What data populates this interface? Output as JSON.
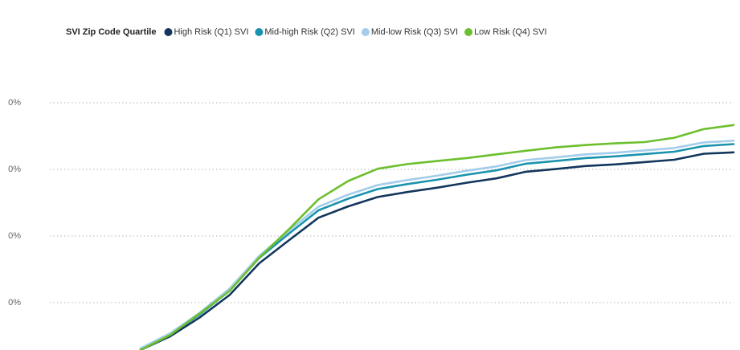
{
  "chart_data": {
    "type": "line",
    "legend_title": "SVI Zip Code Quartile",
    "categories": [
      null,
      null,
      null,
      null,
      null,
      null,
      null,
      null,
      null,
      null,
      null,
      null,
      null,
      null,
      null,
      null,
      null,
      null,
      null,
      null,
      null
    ],
    "ylim": [
      0,
      90
    ],
    "yticks": [
      {
        "value": 20,
        "label": "0%"
      },
      {
        "value": 40,
        "label": "0%"
      },
      {
        "value": 60,
        "label": "0%"
      },
      {
        "value": 80,
        "label": "0%"
      }
    ],
    "grid": true,
    "legend": "top",
    "series": [
      {
        "name": "High Risk (Q1) SVI",
        "color": "#13365c",
        "values": [
          5.8,
          9.9,
          15.6,
          22.3,
          31.8,
          38.7,
          45.5,
          48.9,
          51.7,
          53.2,
          54.5,
          56,
          57.3,
          59.3,
          60.1,
          61,
          61.5,
          62.2,
          62.9,
          64.7,
          65.1
        ]
      },
      {
        "name": "Mid-high Risk (Q2) SVI",
        "color": "#1a93ae",
        "values": [
          6.1,
          10.5,
          16.5,
          23.6,
          33.4,
          40.7,
          47.7,
          51.2,
          54.1,
          55.6,
          56.9,
          58.4,
          59.7,
          61.7,
          62.5,
          63.4,
          63.9,
          64.6,
          65.3,
          67,
          67.6
        ]
      },
      {
        "name": "Mid-low Risk (Q3) SVI",
        "color": "#a3cdea",
        "values": [
          6.3,
          10.8,
          17,
          24.2,
          34,
          41.6,
          48.8,
          52.4,
          55.3,
          56.8,
          58.1,
          59.6,
          60.9,
          62.8,
          63.6,
          64.5,
          65,
          65.7,
          66.4,
          68.1,
          68.6
        ]
      },
      {
        "name": "Low Risk (Q4) SVI",
        "color": "#6cbf2e",
        "values": [
          5.8,
          10.3,
          16.8,
          23.5,
          33.5,
          42,
          51,
          56.5,
          60.2,
          61.6,
          62.5,
          63.4,
          64.5,
          65.6,
          66.6,
          67.3,
          67.8,
          68.2,
          69.5,
          72.1,
          73.3
        ]
      }
    ]
  }
}
